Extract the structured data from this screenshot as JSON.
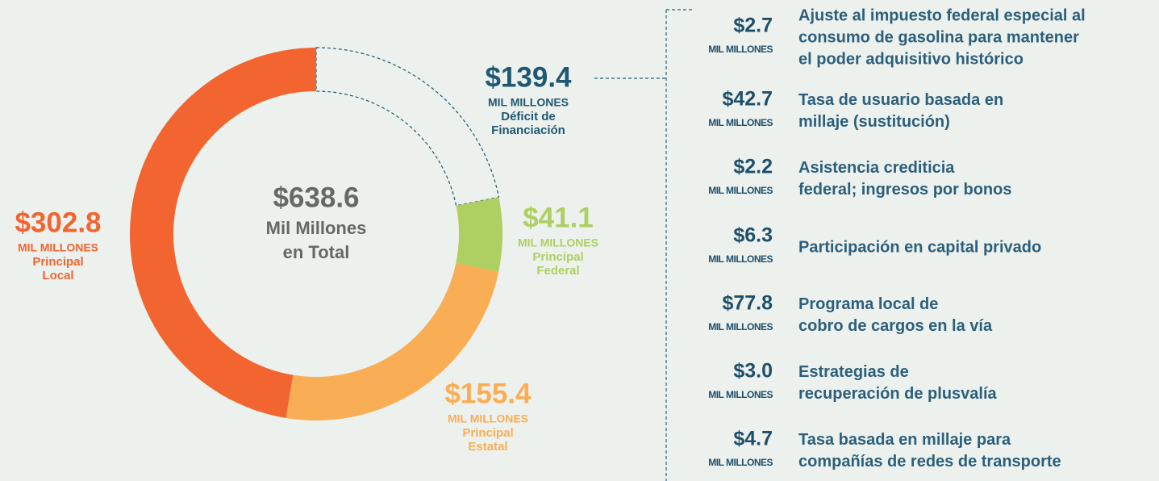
{
  "chart_data": {
    "type": "donut",
    "labels": [
      [
        "Déficit de",
        "Financiación"
      ],
      [
        "Principal",
        "Federal"
      ],
      [
        "Principal",
        "Estatal"
      ],
      [
        "Principal",
        "Local"
      ]
    ],
    "values": [
      139.4,
      41.1,
      155.4,
      302.8
    ],
    "value_labels": [
      "$139.4",
      "$41.1",
      "$155.4",
      "$302.8"
    ],
    "colors": [
      "#1f5872",
      "#aecf62",
      "#f9ad55",
      "#f26430"
    ],
    "styles": [
      "dashed",
      "solid",
      "solid",
      "solid"
    ],
    "unit_label": "MIL MILLONES",
    "total_label": "$638.6",
    "total_text": [
      "Mil Millones",
      "en Total"
    ]
  },
  "breakdown": {
    "items": [
      {
        "value": 2.7,
        "value_label": "$2.7",
        "text": [
          "Ajuste al impuesto federal especial al",
          "consumo de gasolina para mantener",
          "el poder adquisitivo histórico"
        ]
      },
      {
        "value": 42.7,
        "value_label": "$42.7",
        "text": [
          "Tasa de usuario basada en",
          "millaje (sustitución)"
        ]
      },
      {
        "value": 2.2,
        "value_label": "$2.2",
        "text": [
          "Asistencia crediticia",
          "federal; ingresos por bonos"
        ]
      },
      {
        "value": 6.3,
        "value_label": "$6.3",
        "text": [
          "Participación en capital privado"
        ]
      },
      {
        "value": 77.8,
        "value_label": "$77.8",
        "text": [
          "Programa local de",
          "cobro de cargos en la vía"
        ]
      },
      {
        "value": 3.0,
        "value_label": "$3.0",
        "text": [
          "Estrategias de",
          "recuperación de plusvalía"
        ]
      },
      {
        "value": 4.7,
        "value_label": "$4.7",
        "text": [
          "Tasa basada en millaje para",
          "compañías de redes de transporte"
        ]
      }
    ]
  }
}
